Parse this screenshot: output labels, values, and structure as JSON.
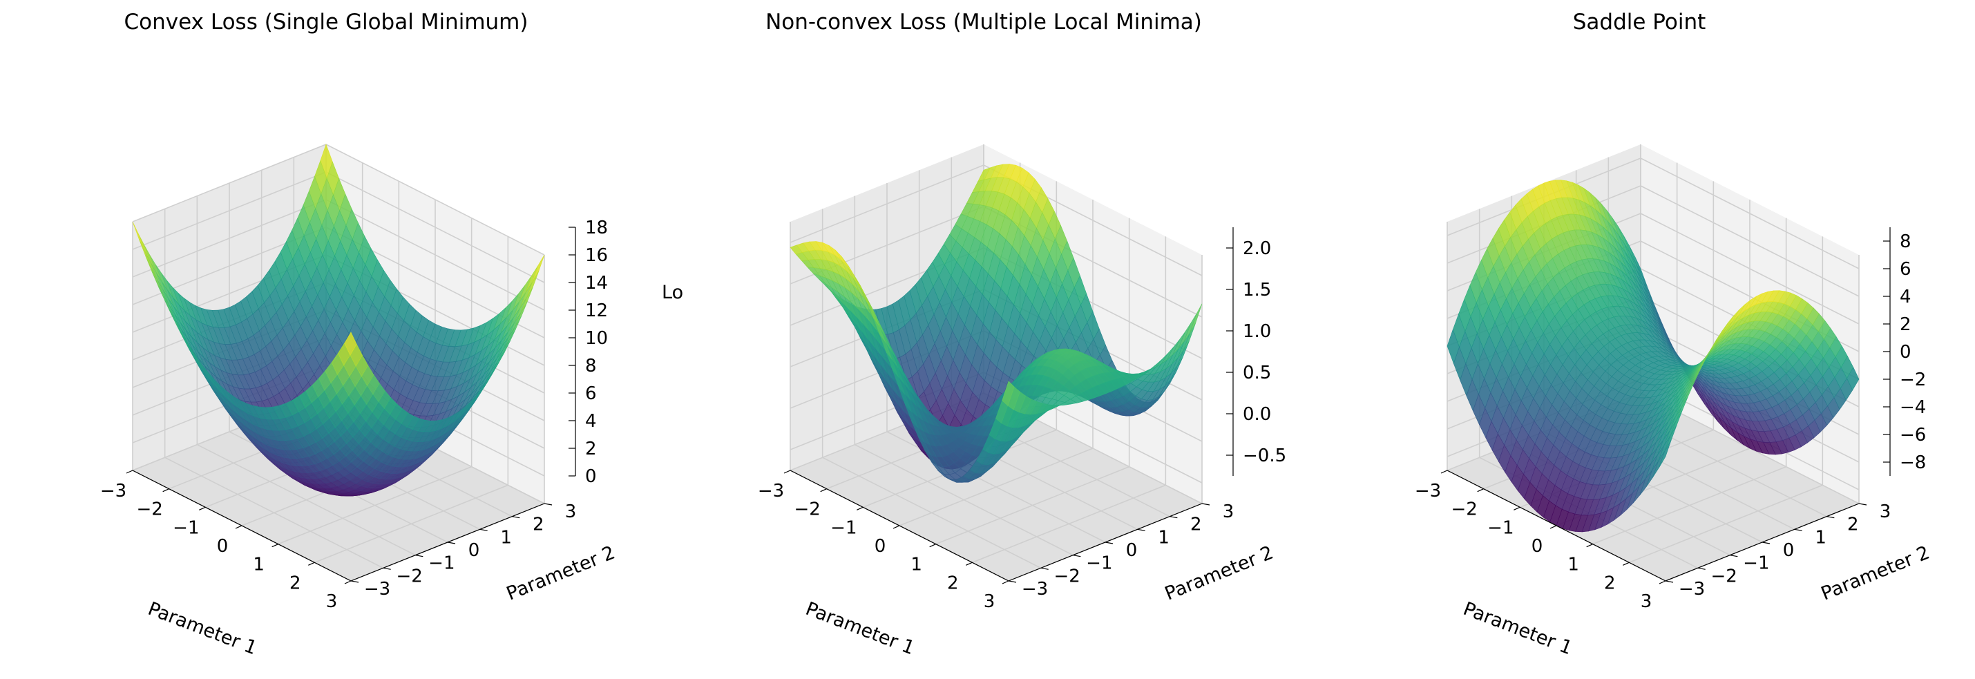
{
  "colors": {
    "pane_left": "#e9e9e9",
    "pane_right": "#f2f2f2",
    "pane_floor": "#e0e0e0",
    "grid": "#cfcfcf",
    "axis_line": "#000000",
    "colormap": "viridis"
  },
  "chart_data": [
    {
      "type": "surface3d",
      "title": "Convex Loss (Single Global Minimum)",
      "xlabel": "Parameter 1",
      "ylabel": "Parameter 2",
      "zlabel": "Lo",
      "function": "x^2 + y^2",
      "xlim": [
        -3,
        3
      ],
      "ylim": [
        -3,
        3
      ],
      "zlim": [
        0,
        18
      ],
      "x_ticks": [
        "−3",
        "−2",
        "−1",
        "0",
        "1",
        "2",
        "3"
      ],
      "y_ticks": [
        "−3",
        "−2",
        "−1",
        "0",
        "1",
        "2",
        "3"
      ],
      "z_ticks": [
        "0",
        "2",
        "4",
        "6",
        "8",
        "10",
        "12",
        "14",
        "16",
        "18"
      ],
      "z_tick_values": [
        0,
        2,
        4,
        6,
        8,
        10,
        12,
        14,
        16,
        18
      ]
    },
    {
      "type": "surface3d",
      "title": "Non-convex Loss (Multiple Local Minima)",
      "xlabel": "Parameter 1",
      "ylabel": "Parameter 2",
      "zlabel": "",
      "function": "sin(x)*cos(y) + 0.1*(x^2 + y^2)",
      "xlim": [
        -3,
        3
      ],
      "ylim": [
        -3,
        3
      ],
      "zlim": [
        -0.75,
        2.25
      ],
      "x_ticks": [
        "−3",
        "−2",
        "−1",
        "0",
        "1",
        "2",
        "3"
      ],
      "y_ticks": [
        "−3",
        "−2",
        "−1",
        "0",
        "1",
        "2",
        "3"
      ],
      "z_ticks": [
        "−0.5",
        "0.0",
        "0.5",
        "1.0",
        "1.5",
        "2.0"
      ],
      "z_tick_values": [
        -0.5,
        0,
        0.5,
        1,
        1.5,
        2
      ]
    },
    {
      "type": "surface3d",
      "title": "Saddle Point",
      "xlabel": "Parameter 1",
      "ylabel": "Parameter 2",
      "zlabel": "",
      "function": "x^2 - y^2",
      "xlim": [
        -3,
        3
      ],
      "ylim": [
        -3,
        3
      ],
      "zlim": [
        -9,
        9
      ],
      "x_ticks": [
        "−3",
        "−2",
        "−1",
        "0",
        "1",
        "2",
        "3"
      ],
      "y_ticks": [
        "−3",
        "−2",
        "−1",
        "0",
        "1",
        "2",
        "3"
      ],
      "z_ticks": [
        "−8",
        "−6",
        "−4",
        "−2",
        "0",
        "2",
        "4",
        "6",
        "8"
      ],
      "z_tick_values": [
        -8,
        -6,
        -4,
        -2,
        0,
        2,
        4,
        6,
        8
      ]
    }
  ]
}
